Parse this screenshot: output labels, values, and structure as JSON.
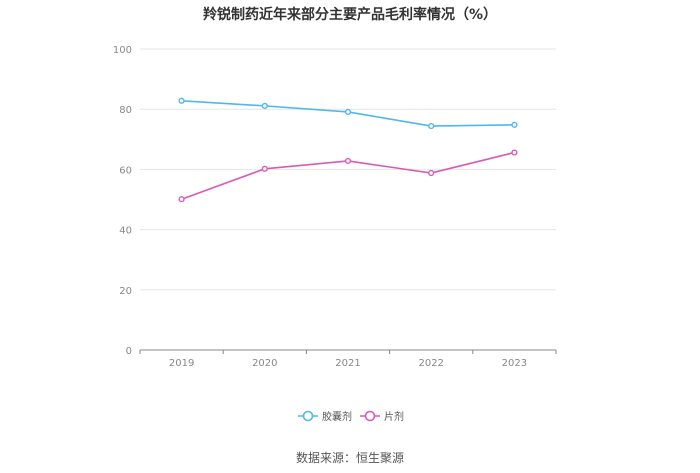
{
  "chart_data": {
    "type": "line",
    "title": "羚锐制药近年来部分主要产品毛利率情况（%）",
    "categories": [
      "2019",
      "2020",
      "2021",
      "2022",
      "2023"
    ],
    "series": [
      {
        "name": "胶囊剂",
        "color": "#4db8f0",
        "values": [
          82.8,
          81.1,
          79.1,
          74.4,
          74.8
        ]
      },
      {
        "name": "片剂",
        "color": "#d85ab6",
        "values": [
          50.1,
          60.2,
          62.8,
          58.8,
          65.6
        ]
      }
    ],
    "ylim": [
      0,
      100
    ],
    "yticks": [
      "0",
      "20",
      "40",
      "60",
      "80",
      "100"
    ],
    "grid": true,
    "legend": "bottom"
  },
  "source": "数据来源：恒生聚源"
}
